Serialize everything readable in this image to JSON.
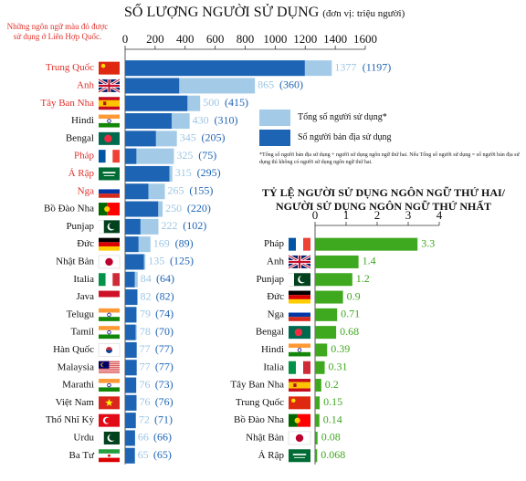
{
  "note": "Những ngôn ngữ màu đỏ được sử dụng ở Liên Hợp Quốc.",
  "title_main": "SỐ LƯỢNG NGƯỜI SỬ DỤNG",
  "title_unit": "(đơn vị: triệu người)",
  "legend_total": "Tổng số người sử dụng*",
  "legend_native": "Số người bản địa sử dụng",
  "footnote": "*Tổng số người bản địa sử dụng + người sử dụng ngôn ngữ thứ hai. Nếu Tổng số người sử dụng = số người bản địa sử dụng thì không có người sử dụng ngôn ngữ thứ hai.",
  "title2": "TỶ LỆ NGƯỜI SỬ DỤNG NGÔN NGỮ THỨ HAI/ NGƯỜI SỬ DỤNG NGÔN NGỮ THỨ NHẤT",
  "colors": {
    "total": "#a3cbe8",
    "native": "#1e64b4",
    "ratio": "#3ea81e",
    "un_label": "#e0302a"
  },
  "chart_data": [
    {
      "type": "bar",
      "orientation": "horizontal",
      "title": "SỐ LƯỢNG NGƯỜI SỬ DỤNG (đơn vị: triệu người)",
      "xlim": [
        0,
        1600
      ],
      "xticks": [
        0,
        200,
        400,
        600,
        800,
        1000,
        1200,
        1400,
        1600
      ],
      "categories": [
        "Trung Quốc",
        "Anh",
        "Tây Ban Nha",
        "Hindi",
        "Bengal",
        "Pháp",
        "Ả Rập",
        "Nga",
        "Bồ Đào Nha",
        "Punjap",
        "Đức",
        "Nhật Bản",
        "Italia",
        "Java",
        "Telugu",
        "Tamil",
        "Hàn Quốc",
        "Malaysia",
        "Marathi",
        "Việt Nam",
        "Thổ Nhĩ Kỳ",
        "Urdu",
        "Ba Tư"
      ],
      "un_languages": [
        "Trung Quốc",
        "Anh",
        "Tây Ban Nha",
        "Pháp",
        "Ả Rập",
        "Nga"
      ],
      "flags": [
        "cn",
        "gb",
        "es",
        "in",
        "bd",
        "fr",
        "sa",
        "ru",
        "pt",
        "pk",
        "de",
        "jp",
        "it",
        "id",
        "in",
        "in",
        "kr",
        "my",
        "in",
        "vn",
        "tr",
        "pk",
        "ir"
      ],
      "series": [
        {
          "name": "Tổng số người sử dụng*",
          "values": [
            1377,
            865,
            500,
            430,
            345,
            325,
            315,
            265,
            250,
            222,
            169,
            135,
            84,
            82,
            79,
            78,
            77,
            77,
            76,
            76,
            72,
            66,
            65
          ]
        },
        {
          "name": "Số người bản địa sử dụng",
          "values": [
            1197,
            360,
            415,
            310,
            205,
            75,
            295,
            155,
            220,
            102,
            89,
            125,
            64,
            82,
            74,
            70,
            77,
            77,
            73,
            76,
            71,
            66,
            65
          ]
        }
      ]
    },
    {
      "type": "bar",
      "orientation": "horizontal",
      "title": "TỶ LỆ NGƯỜI SỬ DỤNG NGÔN NGỮ THỨ HAI/ NGƯỜI SỬ DỤNG NGÔN NGỮ THỨ NHẤT",
      "xlim": [
        0,
        4
      ],
      "xticks": [
        0,
        1,
        2,
        3,
        4
      ],
      "categories": [
        "Pháp",
        "Anh",
        "Punjap",
        "Đức",
        "Nga",
        "Bengal",
        "Hindi",
        "Italia",
        "Tây Ban Nha",
        "Trung Quốc",
        "Bồ Đào Nha",
        "Nhật Bản",
        "Ả Rập"
      ],
      "flags": [
        "fr",
        "gb",
        "pk",
        "de",
        "ru",
        "bd",
        "in",
        "it",
        "es",
        "cn",
        "pt",
        "jp",
        "sa"
      ],
      "values": [
        3.3,
        1.4,
        1.2,
        0.9,
        0.71,
        0.68,
        0.39,
        0.31,
        0.2,
        0.15,
        0.14,
        0.08,
        0.068
      ],
      "value_labels": [
        "3.3",
        "1.4",
        "1.2",
        "0.9",
        "0.71",
        "0.68",
        "0.39",
        "0.31",
        "0.2",
        "0.15",
        "0.14",
        "0.08",
        "0.068"
      ]
    }
  ]
}
